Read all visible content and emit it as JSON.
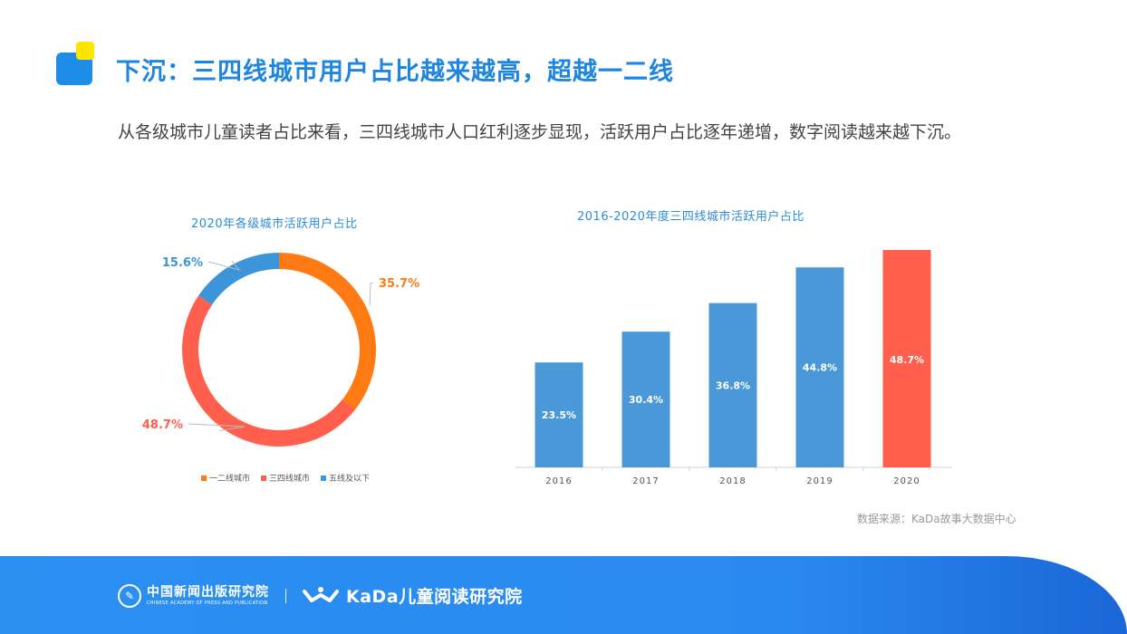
{
  "header": {
    "title": "下沉：三四线城市用户占比越来越高，超越一二线",
    "intro": "从各级城市儿童读者占比来看，三四线城市人口红利逐步显现，活跃用户占比逐年递增，数字阅读越来越下沉。"
  },
  "colors": {
    "brand_blue": "#1e8de8",
    "accent_yellow": "#ffe400",
    "tier12": "#ff7a12",
    "tier34": "#ff5f4c",
    "tier5": "#3b95d8",
    "bar_blue": "#4a98d8",
    "bar_red": "#ff5f4c"
  },
  "chart_data": [
    {
      "type": "pie",
      "title": "2020年各级城市活跃用户占比",
      "donut": true,
      "categories": [
        "一二线城市",
        "三四线城市",
        "五线及以下"
      ],
      "values": [
        35.7,
        48.7,
        15.6
      ],
      "labels": [
        "35.7%",
        "48.7%",
        "15.6%"
      ],
      "legend_position": "bottom"
    },
    {
      "type": "bar",
      "title": "2016-2020年度三四线城市活跃用户占比",
      "categories": [
        "2016",
        "2017",
        "2018",
        "2019",
        "2020"
      ],
      "values": [
        23.5,
        30.4,
        36.8,
        44.8,
        48.7
      ],
      "labels": [
        "23.5%",
        "30.4%",
        "36.8%",
        "44.8%",
        "48.7%"
      ],
      "highlight_index": 4,
      "grid": false
    }
  ],
  "source": "数据来源：KaDa故事大数据中心",
  "footer": {
    "emblem_icon": "press-emblem-icon",
    "org_name": "中国新闻出版研究院",
    "org_name_en": "CHINESE ACADEMY OF PRESS AND PUBLICATION",
    "brand_icon": "kada-hands-icon",
    "brand_name": "KaDa儿童阅读研究院"
  }
}
